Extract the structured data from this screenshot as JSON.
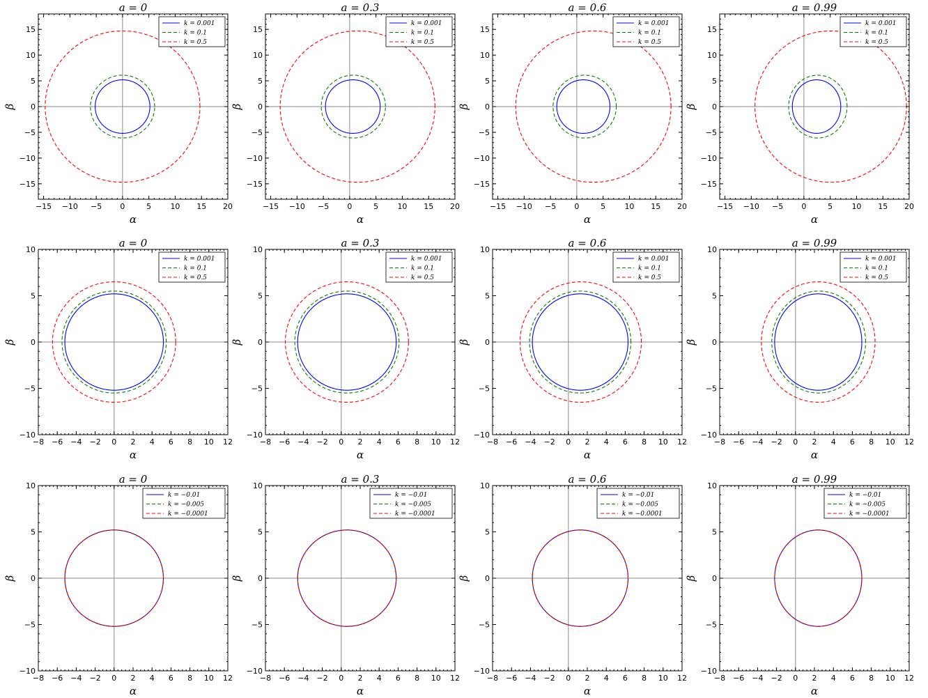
{
  "figure": {
    "rows": [
      {
        "xticks": [
          -15,
          -10,
          -5,
          0,
          5,
          10,
          15,
          20
        ],
        "yticks": [
          -15,
          -10,
          -5,
          0,
          5,
          10,
          15
        ],
        "xlim": [
          -16,
          20
        ],
        "ylim": [
          -18,
          18
        ],
        "legend": [
          "k = 0.001",
          "k = 0.1",
          "k = 0.5"
        ]
      },
      {
        "xticks": [
          -8,
          -6,
          -4,
          -2,
          0,
          2,
          4,
          6,
          8,
          10,
          12
        ],
        "yticks": [
          -10,
          -5,
          0,
          5,
          10
        ],
        "xlim": [
          -8,
          12
        ],
        "ylim": [
          -10,
          10
        ],
        "legend": [
          "k = 0.001",
          "k = 0.1",
          "k = 0.5"
        ]
      },
      {
        "xticks": [
          -8,
          -6,
          -4,
          -2,
          0,
          2,
          4,
          6,
          8,
          10,
          12
        ],
        "yticks": [
          -10,
          -5,
          0,
          5,
          10
        ],
        "xlim": [
          -8,
          12
        ],
        "ylim": [
          -10,
          10
        ],
        "legend": [
          "k = −0.01",
          "k = −0.005",
          "k = −0.0001"
        ]
      }
    ],
    "titles": [
      "a = 0",
      "a = 0.3",
      "a = 0.6",
      "a = 0.99"
    ],
    "xlabel": "α",
    "ylabel": "β",
    "colors": [
      "#0000ff",
      "#008000",
      "#ff0000"
    ]
  },
  "chart_data": [
    {
      "type": "line",
      "title": "a = 0",
      "xlabel": "α",
      "ylabel": "β",
      "xlim": [
        -16,
        20
      ],
      "ylim": [
        -18,
        18
      ],
      "series": [
        {
          "name": "k = 0.001",
          "style": "solid",
          "shadow": {
            "xmin": -5.2,
            "xmax": 5.2,
            "ymax": 5.2
          }
        },
        {
          "name": "k = 0.1",
          "style": "dashed",
          "shadow": {
            "xmin": -6.1,
            "xmax": 6.1,
            "ymax": 6.1
          }
        },
        {
          "name": "k = 0.5",
          "style": "dashed",
          "shadow": {
            "xmin": -14.7,
            "xmax": 14.7,
            "ymax": 14.7
          }
        }
      ]
    },
    {
      "type": "line",
      "title": "a = 0.3",
      "xlabel": "α",
      "ylabel": "β",
      "xlim": [
        -16,
        20
      ],
      "ylim": [
        -18,
        18
      ],
      "series": [
        {
          "name": "k = 0.001",
          "style": "solid",
          "shadow": {
            "xmin": -4.6,
            "xmax": 5.8,
            "ymax": 5.2
          }
        },
        {
          "name": "k = 0.1",
          "style": "dashed",
          "shadow": {
            "xmin": -5.4,
            "xmax": 6.8,
            "ymax": 6.1
          }
        },
        {
          "name": "k = 0.5",
          "style": "dashed",
          "shadow": {
            "xmin": -13.2,
            "xmax": 16.2,
            "ymax": 14.7
          }
        }
      ]
    },
    {
      "type": "line",
      "title": "a = 0.6",
      "xlabel": "α",
      "ylabel": "β",
      "xlim": [
        -16,
        20
      ],
      "ylim": [
        -18,
        18
      ],
      "series": [
        {
          "name": "k = 0.001",
          "style": "solid",
          "shadow": {
            "xmin": -3.8,
            "xmax": 6.3,
            "ymax": 5.2
          }
        },
        {
          "name": "k = 0.1",
          "style": "dashed",
          "shadow": {
            "xmin": -4.5,
            "xmax": 7.5,
            "ymax": 6.1
          }
        },
        {
          "name": "k = 0.5",
          "style": "dashed",
          "shadow": {
            "xmin": -11.6,
            "xmax": 17.9,
            "ymax": 14.7
          }
        }
      ]
    },
    {
      "type": "line",
      "title": "a = 0.99",
      "xlabel": "α",
      "ylabel": "β",
      "xlim": [
        -16,
        20
      ],
      "ylim": [
        -18,
        18
      ],
      "series": [
        {
          "name": "k = 0.001",
          "style": "solid",
          "shadow": {
            "xmin": -2.2,
            "xmax": 7.0,
            "ymax": 5.2
          }
        },
        {
          "name": "k = 0.1",
          "style": "dashed",
          "shadow": {
            "xmin": -2.9,
            "xmax": 8.2,
            "ymax": 6.1
          }
        },
        {
          "name": "k = 0.5",
          "style": "dashed",
          "shadow": {
            "xmin": -9.3,
            "xmax": 19.5,
            "ymax": 14.7
          }
        }
      ]
    },
    {
      "type": "line",
      "title": "a = 0",
      "xlabel": "α",
      "ylabel": "β",
      "xlim": [
        -8,
        12
      ],
      "ylim": [
        -10,
        10
      ],
      "series": [
        {
          "name": "k = 0.001",
          "style": "solid",
          "shadow": {
            "xmin": -5.2,
            "xmax": 5.2,
            "ymax": 5.2
          }
        },
        {
          "name": "k = 0.1",
          "style": "dashed",
          "shadow": {
            "xmin": -5.5,
            "xmax": 5.5,
            "ymax": 5.5
          }
        },
        {
          "name": "k = 0.5",
          "style": "dashed",
          "shadow": {
            "xmin": -6.5,
            "xmax": 6.5,
            "ymax": 6.5
          }
        }
      ]
    },
    {
      "type": "line",
      "title": "a = 0.3",
      "xlabel": "α",
      "ylabel": "β",
      "xlim": [
        -8,
        12
      ],
      "ylim": [
        -10,
        10
      ],
      "series": [
        {
          "name": "k = 0.001",
          "style": "solid",
          "shadow": {
            "xmin": -4.6,
            "xmax": 5.8,
            "ymax": 5.2
          }
        },
        {
          "name": "k = 0.1",
          "style": "dashed",
          "shadow": {
            "xmin": -4.9,
            "xmax": 6.1,
            "ymax": 5.5
          }
        },
        {
          "name": "k = 0.5",
          "style": "dashed",
          "shadow": {
            "xmin": -5.9,
            "xmax": 7.1,
            "ymax": 6.5
          }
        }
      ]
    },
    {
      "type": "line",
      "title": "a = 0.6",
      "xlabel": "α",
      "ylabel": "β",
      "xlim": [
        -8,
        12
      ],
      "ylim": [
        -10,
        10
      ],
      "series": [
        {
          "name": "k = 0.001",
          "style": "solid",
          "shadow": {
            "xmin": -3.8,
            "xmax": 6.3,
            "ymax": 5.2
          }
        },
        {
          "name": "k = 0.1",
          "style": "dashed",
          "shadow": {
            "xmin": -4.1,
            "xmax": 6.6,
            "ymax": 5.5
          }
        },
        {
          "name": "k = 0.5",
          "style": "dashed",
          "shadow": {
            "xmin": -5.1,
            "xmax": 7.7,
            "ymax": 6.5
          }
        }
      ]
    },
    {
      "type": "line",
      "title": "a = 0.99",
      "xlabel": "α",
      "ylabel": "β",
      "xlim": [
        -8,
        12
      ],
      "ylim": [
        -10,
        10
      ],
      "series": [
        {
          "name": "k = 0.001",
          "style": "solid",
          "shadow": {
            "xmin": -2.2,
            "xmax": 7.0,
            "ymax": 5.2
          }
        },
        {
          "name": "k = 0.1",
          "style": "dashed",
          "shadow": {
            "xmin": -2.5,
            "xmax": 7.4,
            "ymax": 5.5
          }
        },
        {
          "name": "k = 0.5",
          "style": "dashed",
          "shadow": {
            "xmin": -3.6,
            "xmax": 8.4,
            "ymax": 6.5
          }
        }
      ]
    },
    {
      "type": "line",
      "title": "a = 0",
      "xlabel": "α",
      "ylabel": "β",
      "xlim": [
        -8,
        12
      ],
      "ylim": [
        -10,
        10
      ],
      "series": [
        {
          "name": "k = −0.01",
          "style": "solid",
          "shadow": {
            "xmin": -5.2,
            "xmax": 5.2,
            "ymax": 5.2
          }
        },
        {
          "name": "k = −0.005",
          "style": "dashed",
          "shadow": {
            "xmin": -5.2,
            "xmax": 5.2,
            "ymax": 5.2
          }
        },
        {
          "name": "k = −0.0001",
          "style": "dashed",
          "shadow": {
            "xmin": -5.2,
            "xmax": 5.2,
            "ymax": 5.2
          }
        }
      ]
    },
    {
      "type": "line",
      "title": "a = 0.3",
      "xlabel": "α",
      "ylabel": "β",
      "xlim": [
        -8,
        12
      ],
      "ylim": [
        -10,
        10
      ],
      "series": [
        {
          "name": "k = −0.01",
          "style": "solid",
          "shadow": {
            "xmin": -4.6,
            "xmax": 5.8,
            "ymax": 5.2
          }
        },
        {
          "name": "k = −0.005",
          "style": "dashed",
          "shadow": {
            "xmin": -4.6,
            "xmax": 5.8,
            "ymax": 5.2
          }
        },
        {
          "name": "k = −0.0001",
          "style": "dashed",
          "shadow": {
            "xmin": -4.6,
            "xmax": 5.8,
            "ymax": 5.2
          }
        }
      ]
    },
    {
      "type": "line",
      "title": "a = 0.6",
      "xlabel": "α",
      "ylabel": "β",
      "xlim": [
        -8,
        12
      ],
      "ylim": [
        -10,
        10
      ],
      "series": [
        {
          "name": "k = −0.01",
          "style": "solid",
          "shadow": {
            "xmin": -3.8,
            "xmax": 6.3,
            "ymax": 5.2
          }
        },
        {
          "name": "k = −0.005",
          "style": "dashed",
          "shadow": {
            "xmin": -3.8,
            "xmax": 6.3,
            "ymax": 5.2
          }
        },
        {
          "name": "k = −0.0001",
          "style": "dashed",
          "shadow": {
            "xmin": -3.8,
            "xmax": 6.3,
            "ymax": 5.2
          }
        }
      ]
    },
    {
      "type": "line",
      "title": "a = 0.99",
      "xlabel": "α",
      "ylabel": "β",
      "xlim": [
        -8,
        12
      ],
      "ylim": [
        -10,
        10
      ],
      "series": [
        {
          "name": "k = −0.01",
          "style": "solid",
          "shadow": {
            "xmin": -2.2,
            "xmax": 7.0,
            "ymax": 5.2
          }
        },
        {
          "name": "k = −0.005",
          "style": "dashed",
          "shadow": {
            "xmin": -2.2,
            "xmax": 7.0,
            "ymax": 5.2
          }
        },
        {
          "name": "k = −0.0001",
          "style": "dashed",
          "shadow": {
            "xmin": -2.2,
            "xmax": 7.0,
            "ymax": 5.2
          }
        }
      ]
    }
  ]
}
